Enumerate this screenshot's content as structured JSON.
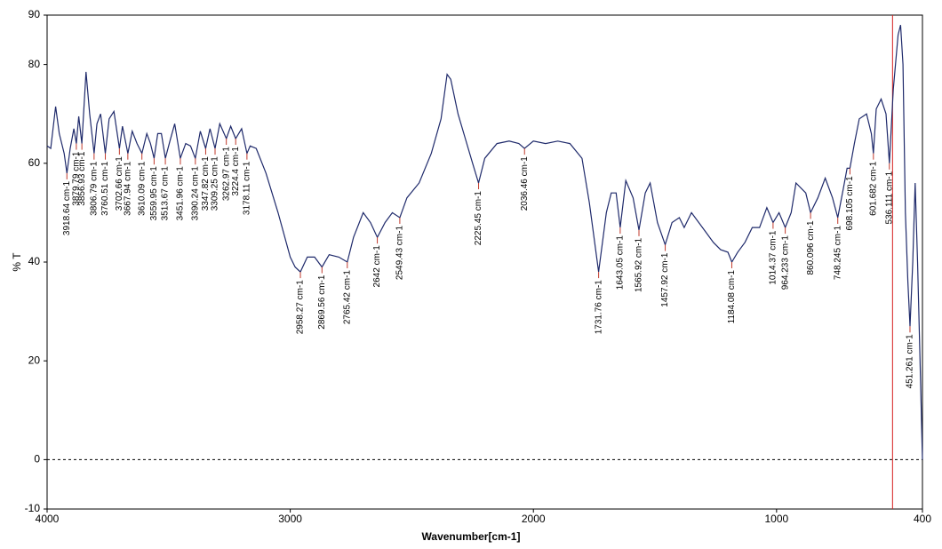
{
  "chart_data": {
    "type": "line",
    "x_label": "Wavenumber[cm-1]",
    "y_label": "% T",
    "xlim": [
      4000,
      400
    ],
    "ylim": [
      -10,
      90
    ],
    "xticks": [
      4000,
      3000,
      2000,
      1000,
      400
    ],
    "yticks": [
      -10,
      0,
      20,
      40,
      60,
      80,
      90
    ],
    "color": "#1f2a6b",
    "peak_color": "#c0392b",
    "cursor_color": "#d62020",
    "cursor_x": 523,
    "reference_y": 0,
    "x": [
      4000,
      3985,
      3965,
      3950,
      3930,
      3918.64,
      3905,
      3890,
      3879.79,
      3870,
      3856.93,
      3840,
      3825,
      3806.79,
      3795,
      3780,
      3760.51,
      3745,
      3725,
      3702.66,
      3690,
      3667.94,
      3650,
      3630,
      3610.09,
      3590,
      3575,
      3559.95,
      3545,
      3530,
      3513.67,
      3495,
      3475,
      3451.96,
      3430,
      3410,
      3390.24,
      3370,
      3347.82,
      3330,
      3309.25,
      3290,
      3262.97,
      3245,
      3224.4,
      3200,
      3178.11,
      3165,
      3140,
      3100,
      3050,
      3000,
      2980,
      2958.27,
      2930,
      2900,
      2869.56,
      2840,
      2800,
      2765.42,
      2740,
      2700,
      2670,
      2642,
      2610,
      2580,
      2549.43,
      2520,
      2470,
      2420,
      2380,
      2355,
      2340,
      2310,
      2280,
      2250,
      2225.45,
      2200,
      2150,
      2100,
      2060,
      2036.46,
      2000,
      1950,
      1900,
      1850,
      1800,
      1770,
      1731.76,
      1700,
      1680,
      1660,
      1643.05,
      1620,
      1590,
      1565.92,
      1540,
      1520,
      1490,
      1457.92,
      1430,
      1400,
      1380,
      1350,
      1320,
      1290,
      1260,
      1230,
      1200,
      1184.08,
      1160,
      1130,
      1100,
      1070,
      1040,
      1014.37,
      990,
      964.233,
      940,
      920,
      880,
      860.096,
      830,
      800,
      770,
      748.245,
      725,
      710,
      698.105,
      680,
      660,
      630,
      610,
      601.682,
      590,
      570,
      550,
      536.111,
      520,
      500,
      490,
      480,
      470,
      460,
      451.261,
      440,
      430,
      420,
      410,
      400
    ],
    "values": [
      63.5,
      63,
      71.5,
      66,
      62,
      58,
      63,
      67,
      64,
      69.5,
      64,
      78.5,
      70,
      62,
      68,
      70,
      62,
      69,
      70.5,
      63,
      67.5,
      62,
      66.5,
      64,
      62,
      66,
      64,
      61,
      66,
      66,
      61,
      64.5,
      68,
      61,
      64,
      63.5,
      61,
      66.5,
      63,
      67,
      63,
      68,
      65,
      67.5,
      65,
      67,
      62,
      63.5,
      63,
      58,
      50,
      41,
      39,
      38,
      41,
      41,
      39,
      41.5,
      41,
      40,
      45,
      50,
      48,
      45,
      48,
      50,
      49,
      53,
      56,
      62,
      69,
      78,
      77,
      70,
      65,
      60,
      56,
      61,
      64,
      64.5,
      64,
      63,
      64.5,
      64,
      64.5,
      64,
      61,
      52,
      38,
      50,
      54,
      54,
      47,
      56.5,
      53,
      46.5,
      54,
      56,
      48,
      43.5,
      48,
      49,
      47,
      50,
      48,
      46,
      44,
      42.5,
      42,
      40,
      42,
      44,
      47,
      47,
      51,
      48,
      50,
      47,
      50,
      56,
      54,
      50,
      53,
      57,
      53,
      49,
      55,
      59,
      59,
      64,
      69,
      70,
      66,
      62,
      71,
      73,
      70,
      60,
      75,
      86,
      88,
      80,
      50,
      36,
      27,
      40,
      56,
      40,
      20,
      0
    ],
    "peaks": [
      {
        "x": 3918.64,
        "y": 58,
        "label": "3918.64 cm-1"
      },
      {
        "x": 3879.79,
        "y": 64,
        "label": "3879.79 cm-1"
      },
      {
        "x": 3856.93,
        "y": 64,
        "label": "3856.93 cm-1"
      },
      {
        "x": 3806.79,
        "y": 62,
        "label": "3806.79 cm-1"
      },
      {
        "x": 3760.51,
        "y": 62,
        "label": "3760.51 cm-1"
      },
      {
        "x": 3702.66,
        "y": 63,
        "label": "3702.66 cm-1"
      },
      {
        "x": 3667.94,
        "y": 62,
        "label": "3667.94 cm-1"
      },
      {
        "x": 3610.09,
        "y": 62,
        "label": "3610.09 cm-1"
      },
      {
        "x": 3559.95,
        "y": 61,
        "label": "3559.95 cm-1"
      },
      {
        "x": 3513.67,
        "y": 61,
        "label": "3513.67 cm-1"
      },
      {
        "x": 3451.96,
        "y": 61,
        "label": "3451.96 cm-1"
      },
      {
        "x": 3390.24,
        "y": 61,
        "label": "3390.24 cm-1"
      },
      {
        "x": 3347.82,
        "y": 63,
        "label": "3347.82 cm-1"
      },
      {
        "x": 3309.25,
        "y": 63,
        "label": "3309.25 cm-1"
      },
      {
        "x": 3262.97,
        "y": 65,
        "label": "3262.97 cm-1"
      },
      {
        "x": 3224.4,
        "y": 65,
        "label": "3224.4 cm-1"
      },
      {
        "x": 3178.11,
        "y": 62,
        "label": "3178.11 cm-1"
      },
      {
        "x": 2958.27,
        "y": 38,
        "label": "2958.27 cm-1"
      },
      {
        "x": 2869.56,
        "y": 39,
        "label": "2869.56 cm-1"
      },
      {
        "x": 2765.42,
        "y": 40,
        "label": "2765.42 cm-1"
      },
      {
        "x": 2642,
        "y": 45,
        "label": "2642 cm-1"
      },
      {
        "x": 2549.43,
        "y": 49,
        "label": "2549.43 cm-1"
      },
      {
        "x": 2225.45,
        "y": 56,
        "label": "2225.45 cm-1"
      },
      {
        "x": 2036.46,
        "y": 63,
        "label": "2036.46 cm-1"
      },
      {
        "x": 1731.76,
        "y": 38,
        "label": "1731.76 cm-1"
      },
      {
        "x": 1643.05,
        "y": 47,
        "label": "1643.05 cm-1"
      },
      {
        "x": 1565.92,
        "y": 46.5,
        "label": "1565.92 cm-1"
      },
      {
        "x": 1457.92,
        "y": 43.5,
        "label": "1457.92 cm-1"
      },
      {
        "x": 1184.08,
        "y": 40,
        "label": "1184.08 cm-1"
      },
      {
        "x": 1014.37,
        "y": 48,
        "label": "1014.37 cm-1"
      },
      {
        "x": 964.233,
        "y": 47,
        "label": "964.233 cm-1"
      },
      {
        "x": 860.096,
        "y": 50,
        "label": "860.096 cm-1"
      },
      {
        "x": 748.245,
        "y": 49,
        "label": "748.245 cm-1"
      },
      {
        "x": 698.105,
        "y": 59,
        "label": "698.105 cm-1"
      },
      {
        "x": 601.682,
        "y": 62,
        "label": "601.682 cm-1"
      },
      {
        "x": 536.111,
        "y": 60,
        "label": "536.111 cm-1"
      },
      {
        "x": 451.261,
        "y": 27,
        "label": "451.261 cm-1"
      }
    ]
  }
}
